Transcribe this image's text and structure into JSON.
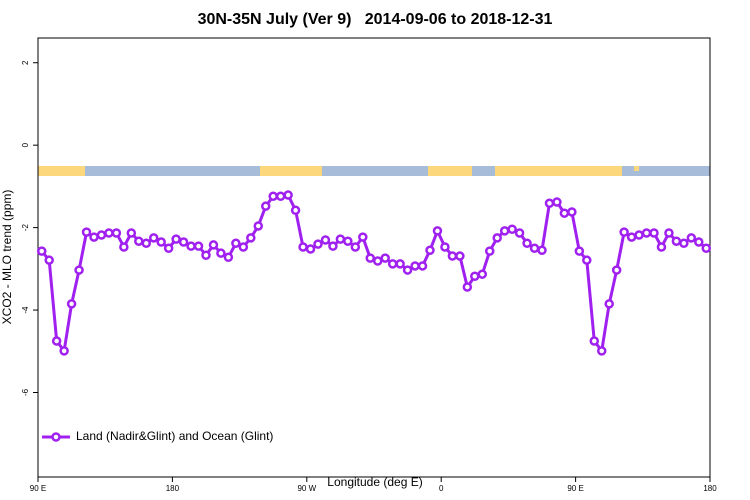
{
  "chart_data": {
    "type": "line",
    "title": "30N-35N July (Ver 9)   2014-09-06 to 2018-12-31",
    "x_label": "Longitude (deg E)",
    "y_label": "XCO2 - MLO trend (ppm)",
    "x": [
      92.5,
      97.5,
      102.5,
      107.5,
      112.5,
      117.5,
      122.5,
      127.5,
      132.5,
      137.5,
      142.5,
      147.5,
      152.5,
      157.5,
      162.5,
      167.5,
      172.5,
      177.5,
      182.5,
      187.5,
      192.5,
      197.5,
      202.5,
      207.5,
      212.5,
      217.5,
      222.5,
      227.5,
      232.5,
      237.5,
      242.5,
      247.5,
      252.5,
      257.5,
      262.5,
      267.5,
      272.5,
      277.5,
      282.5,
      287.5,
      292.5,
      297.5,
      302.5,
      307.5,
      312.5,
      317.5,
      322.5,
      327.5,
      332.5,
      337.5,
      342.5,
      347.5,
      352.5,
      357.5,
      362.5,
      367.5,
      372.5,
      377.5,
      382.5,
      387.5,
      392.5,
      397.5,
      402.5,
      407.5,
      412.5,
      417.5,
      422.5,
      427.5,
      432.5,
      437.5,
      442.5,
      447.5,
      452.5,
      457.5,
      462.5,
      467.5,
      472.5,
      477.5,
      482.5,
      487.5,
      492.5,
      497.5,
      502.5,
      507.5,
      512.5,
      517.5,
      522.5,
      527.5,
      532.5,
      537.5
    ],
    "series": [
      {
        "name": "Land (Nadir&Glint) and Ocean (Glint)",
        "color": "#a020f0",
        "values": [
          -2.57,
          -2.79,
          -4.75,
          -4.99,
          -3.85,
          -3.03,
          -2.11,
          -2.23,
          -2.18,
          -2.13,
          -2.13,
          -2.47,
          -2.13,
          -2.33,
          -2.38,
          -2.25,
          -2.35,
          -2.5,
          -2.28,
          -2.35,
          -2.45,
          -2.45,
          -2.67,
          -2.42,
          -2.62,
          -2.72,
          -2.38,
          -2.47,
          -2.25,
          -1.96,
          -1.48,
          -1.24,
          -1.24,
          -1.21,
          -1.58,
          -2.47,
          -2.52,
          -2.4,
          -2.3,
          -2.45,
          -2.28,
          -2.33,
          -2.47,
          -2.23,
          -2.74,
          -2.81,
          -2.74,
          -2.88,
          -2.88,
          -3.03,
          -2.93,
          -2.93,
          -2.55,
          -2.08,
          -2.47,
          -2.69,
          -2.69,
          -3.44,
          -3.18,
          -3.13,
          -2.57,
          -2.25,
          -2.08,
          -2.04,
          -2.13,
          -2.38,
          -2.5,
          -2.55,
          -1.41,
          -1.38,
          -1.65,
          -1.62,
          -2.57,
          -2.79,
          -4.75,
          -4.99,
          -3.85,
          -3.03,
          -2.11,
          -2.23,
          -2.18,
          -2.13,
          -2.13,
          -2.47,
          -2.13,
          -2.33,
          -2.38,
          -2.25,
          -2.35,
          -2.5
        ]
      }
    ],
    "xlim": [
      90,
      540
    ],
    "xticks": [
      {
        "value": 90,
        "label": "90 E"
      },
      180,
      {
        "value": 270,
        "label": "90 W"
      },
      {
        "value": 360,
        "label": "0"
      },
      {
        "value": 450,
        "label": "90 E"
      },
      {
        "value": 540,
        "label": "180"
      }
    ],
    "ylim": [
      -8.05,
      2.6
    ],
    "yticks": [
      -6,
      -4,
      -2,
      0,
      2
    ],
    "grid": false,
    "legend": "bottom-left"
  }
}
